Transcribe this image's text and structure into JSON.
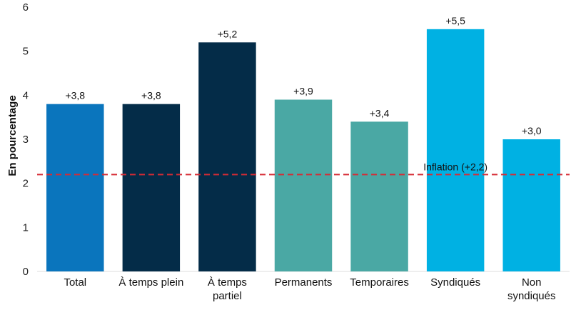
{
  "chart_data": {
    "type": "bar",
    "title": "",
    "xlabel": "",
    "ylabel": "En pourcentage",
    "ylim": [
      0,
      6
    ],
    "yticks": [
      0,
      1,
      2,
      3,
      4,
      5,
      6
    ],
    "grid": false,
    "legend": "none",
    "categories": [
      [
        "Total"
      ],
      [
        "À temps plein"
      ],
      [
        "À temps",
        "partiel"
      ],
      [
        "Permanents"
      ],
      [
        "Temporaires"
      ],
      [
        "Syndiqués"
      ],
      [
        "Non",
        "syndiqués"
      ]
    ],
    "values": [
      3.8,
      3.8,
      5.2,
      3.9,
      3.4,
      5.5,
      3.0
    ],
    "data_labels": [
      "+3,8",
      "+3,8",
      "+5,2",
      "+3,9",
      "+3,4",
      "+5,5",
      "+3,0"
    ],
    "colors": [
      "#0a75bd",
      "#042c48",
      "#042c48",
      "#4aa8a4",
      "#4aa8a4",
      "#00b1e3",
      "#00b1e3"
    ],
    "reference_line": {
      "value": 2.2,
      "label": "Inflation (+2,2)",
      "color": "#d62b35",
      "style": "dashed"
    }
  }
}
